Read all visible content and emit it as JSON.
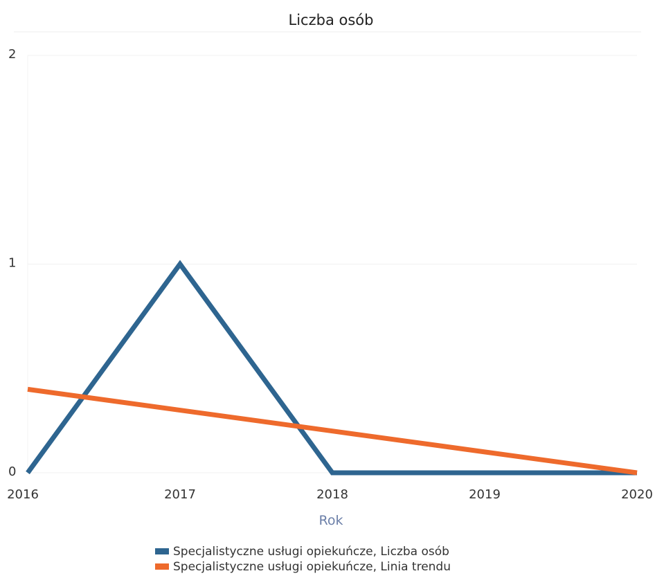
{
  "chart_data": {
    "type": "line",
    "title": "Liczba osób",
    "xlabel": "Rok",
    "ylabel": "",
    "x": [
      "2016",
      "2017",
      "2018",
      "2019",
      "2020"
    ],
    "yticks": [
      "0",
      "1",
      "2"
    ],
    "ylim": [
      0,
      2
    ],
    "grid": true,
    "legend_position": "bottom",
    "series": [
      {
        "name": "Specjalistyczne usługi opiekuńcze, Liczba osób",
        "values": [
          0,
          1,
          0,
          0,
          0
        ],
        "color": "#2e6590"
      },
      {
        "name": "Specjalistyczne usługi opiekuńcze, Linia trendu",
        "values": [
          0.4,
          0.3,
          0.2,
          0.1,
          0
        ],
        "color": "#ee6a2c"
      }
    ]
  }
}
